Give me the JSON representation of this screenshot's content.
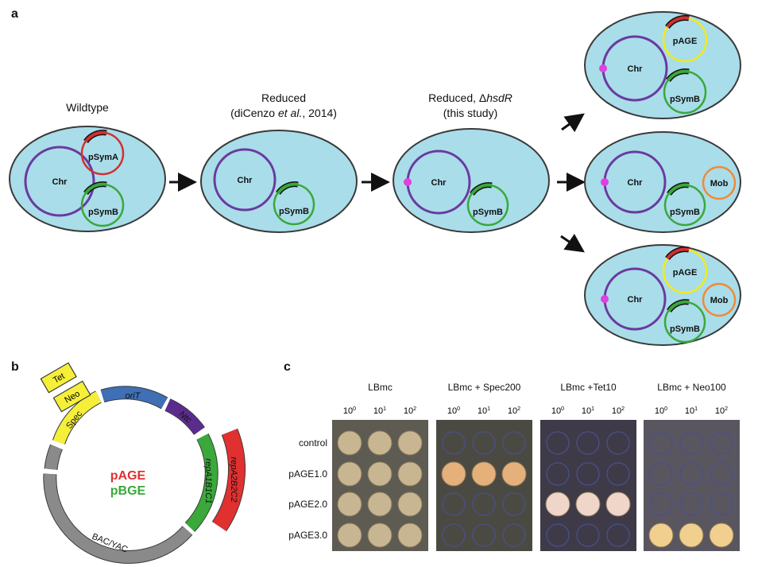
{
  "panels": {
    "a": "a",
    "b": "b",
    "c": "c"
  },
  "panel_a": {
    "titles": {
      "wildtype": "Wildtype",
      "reduced_line1": "Reduced",
      "reduced_line2_pre": "(diCenzo ",
      "reduced_line2_italic": "et al.",
      "reduced_line2_post": ", 2014)",
      "reduced_hsdr_pre": "Reduced, Δ",
      "reduced_hsdr_italic": "hsdR",
      "reduced_hsdr_line2": "(this study)"
    },
    "labels": {
      "chr": "Chr",
      "psyma": "pSymA",
      "psymb": "pSymB",
      "page": "pAGE",
      "mob": "Mob"
    },
    "colors": {
      "cell_fill": "#a9dde9",
      "chr_ring": "#6a3aa0",
      "psyma_ring": "#d33030",
      "psymb_ring": "#3aa83a",
      "page_ring": "#f2ea1a",
      "mob_ring": "#ef8a3a",
      "marker": "#e040e0"
    }
  },
  "panel_b": {
    "center_red": "pAGE",
    "center_green": "pBGE",
    "segments": {
      "oriT": "oriT",
      "ntc": "Ntc",
      "repa1": "repA1B1C1",
      "repa2": "repA2B2C2",
      "bac": "BAC/YAC",
      "spec": "Spec",
      "neo": "Neo",
      "tet": "Tet"
    },
    "colors": {
      "backbone": "#8a8a8a",
      "oriT": "#3f6fb5",
      "ntc": "#5b2c8e",
      "repa1": "#3aa83a",
      "repa2": "#e03030",
      "markers": "#f5ef3a"
    }
  },
  "panel_c": {
    "plates": [
      {
        "title": "LBmc",
        "growth": [
          [
            1,
            1,
            1
          ],
          [
            1,
            1,
            1
          ],
          [
            1,
            1,
            1
          ],
          [
            1,
            1,
            1
          ]
        ]
      },
      {
        "title": "LBmc + Spec200",
        "growth": [
          [
            0,
            0,
            0
          ],
          [
            1,
            1,
            1
          ],
          [
            0,
            0,
            0
          ],
          [
            0,
            0,
            0
          ]
        ]
      },
      {
        "title": "LBmc +Tet10",
        "growth": [
          [
            0,
            0,
            0
          ],
          [
            0,
            0,
            0
          ],
          [
            1,
            1,
            1
          ],
          [
            0,
            0,
            0
          ]
        ]
      },
      {
        "title": "LBmc + Neo100",
        "growth": [
          [
            0,
            0,
            0
          ],
          [
            0,
            0,
            0
          ],
          [
            0,
            0,
            0
          ],
          [
            1,
            1,
            1
          ]
        ]
      }
    ],
    "dilution_base": "10",
    "dilution_exps": [
      "0",
      "1",
      "2"
    ],
    "rows": [
      "control",
      "pAGE1.0",
      "pAGE2.0",
      "pAGE3.0"
    ]
  }
}
